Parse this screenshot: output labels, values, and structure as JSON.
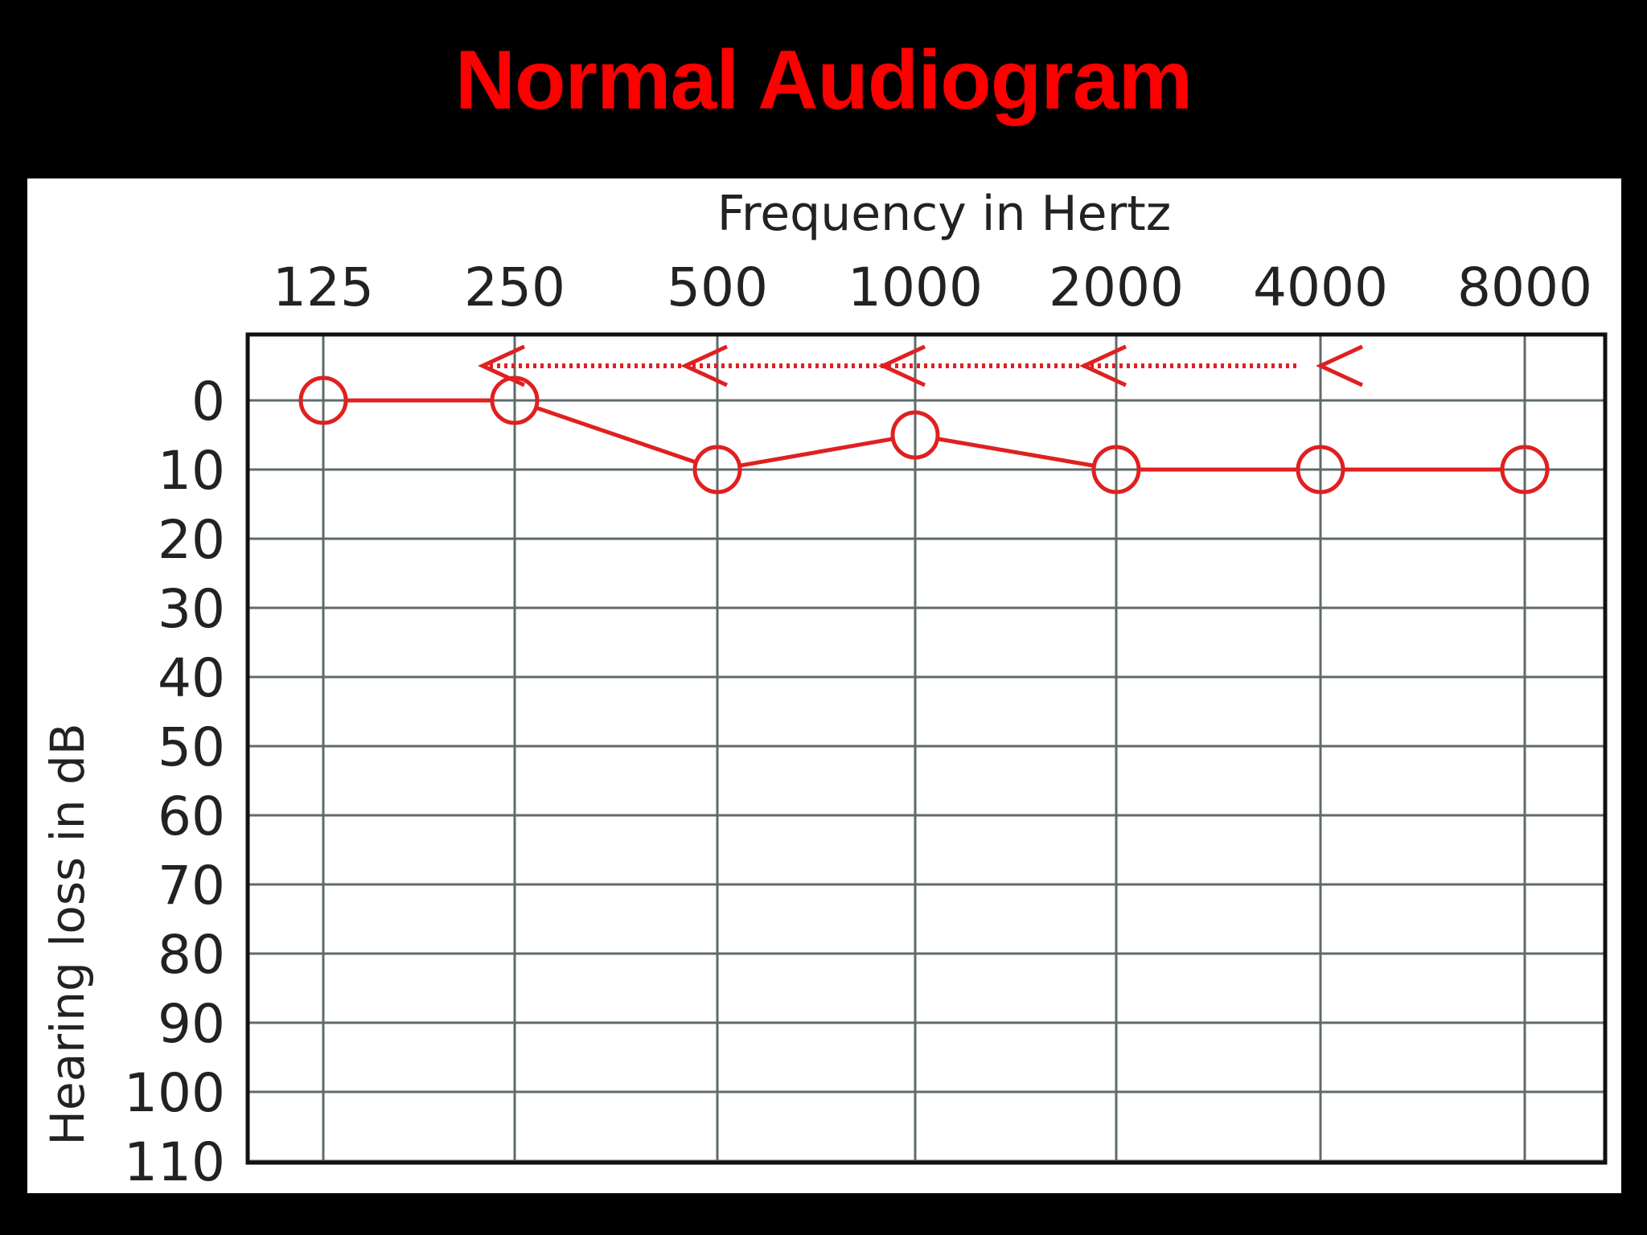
{
  "title": "Normal Audiogram",
  "colors": {
    "background": "#000000",
    "title": "#ff0000",
    "panel": "#ffffff",
    "grid": "#5f6b6b",
    "frame": "#111111",
    "series": "#e02020",
    "text": "#222222"
  },
  "chart_data": {
    "type": "line",
    "xlabel": "Frequency in Hertz",
    "ylabel": "Hearing loss in dB",
    "x_axis_position": "top",
    "y_inverted": true,
    "grid": true,
    "categories": [
      "125",
      "250",
      "500",
      "1000",
      "2000",
      "4000",
      "8000"
    ],
    "y_ticks": [
      "0",
      "10",
      "20",
      "30",
      "40",
      "50",
      "60",
      "70",
      "80",
      "90",
      "100",
      "110"
    ],
    "ylim": [
      -10,
      110
    ],
    "series": [
      {
        "marker": "circle",
        "values": [
          0,
          0,
          10,
          5,
          10,
          10,
          10
        ]
      }
    ],
    "arrows": {
      "style": "dotted",
      "direction": "left",
      "from_category": "4000",
      "to_category": "250",
      "y": -5,
      "heads_at": [
        "250",
        "500",
        "1000",
        "2000",
        "4000"
      ]
    }
  }
}
